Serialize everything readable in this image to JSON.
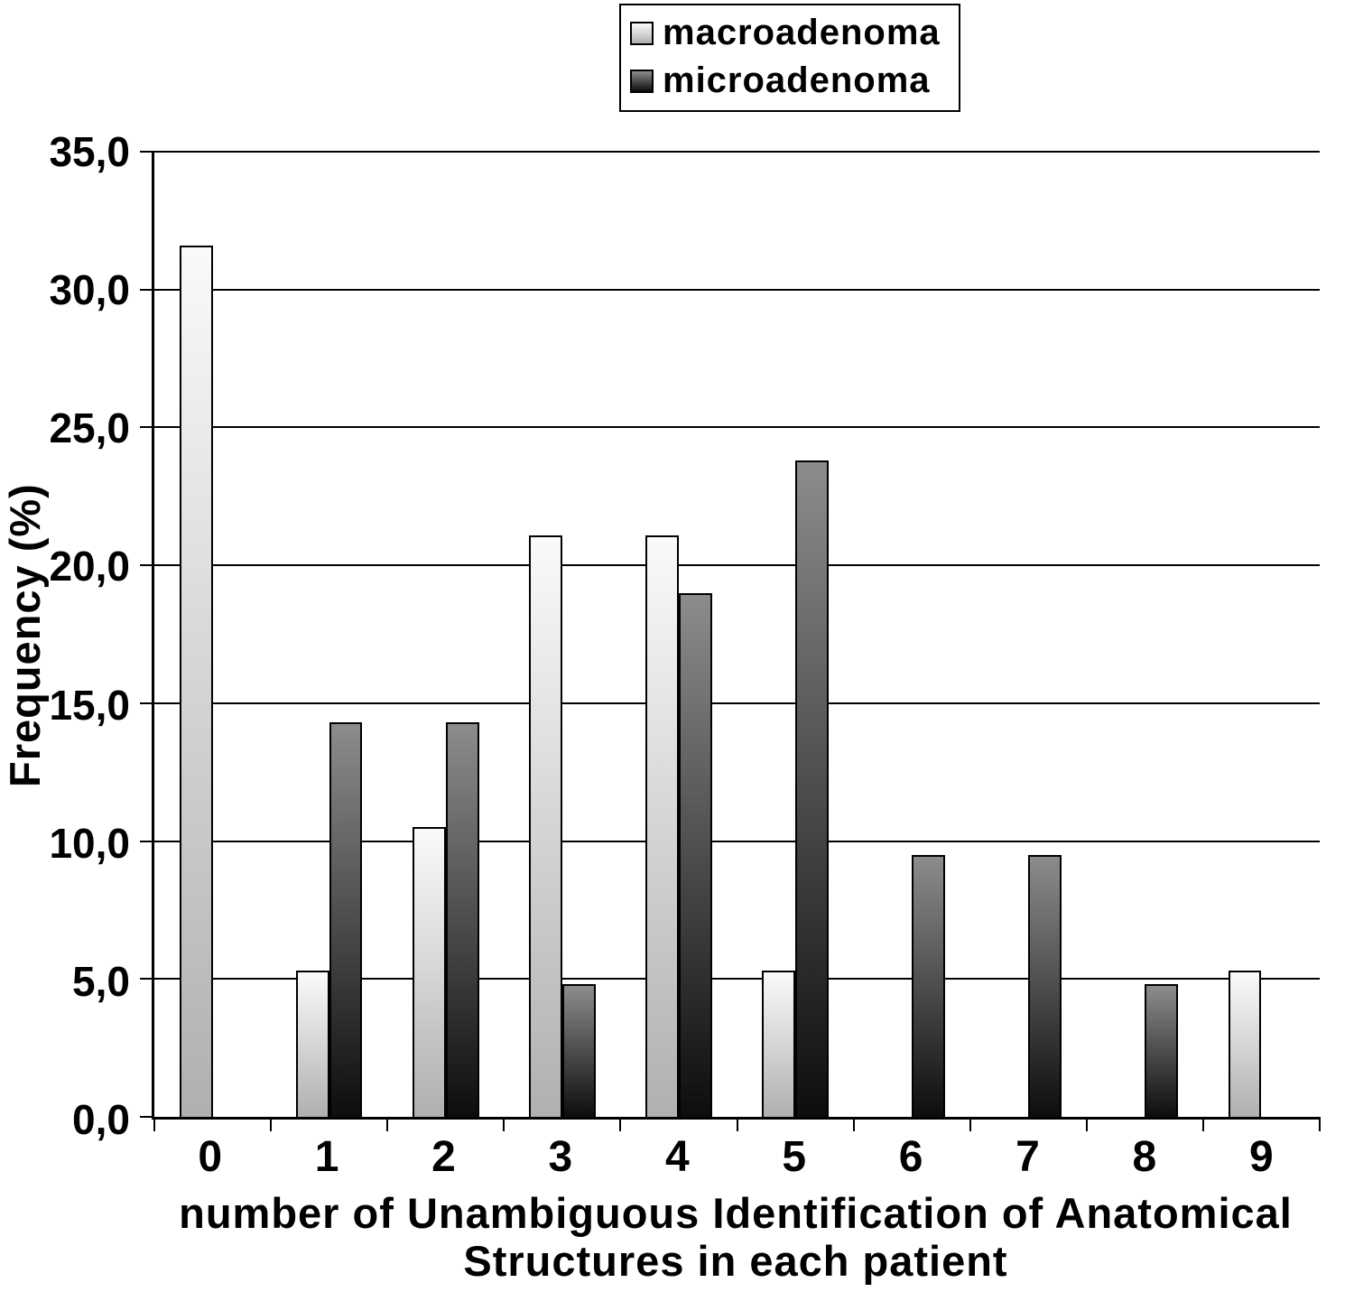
{
  "chart_data": {
    "type": "bar",
    "categories": [
      "0",
      "1",
      "2",
      "3",
      "4",
      "5",
      "6",
      "7",
      "8",
      "9"
    ],
    "series": [
      {
        "name": "macroadenoma",
        "values": [
          31.6,
          5.3,
          10.5,
          21.1,
          21.1,
          5.3,
          0,
          0,
          0,
          5.3
        ],
        "fill_top": "#fafafa",
        "fill_bottom": "#b0b0b0"
      },
      {
        "name": "microadenoma",
        "values": [
          0,
          14.3,
          14.3,
          4.8,
          19.0,
          23.8,
          9.5,
          9.5,
          4.8,
          0
        ],
        "fill_top": "#8c8c8c",
        "fill_bottom": "#0d0d0d"
      }
    ],
    "title": "",
    "xlabel": "number of Unambiguous Identification of Anatomical Structures in each patient",
    "xlabel_lines": [
      "number of Unambiguous Identification of Anatomical",
      "Structures in each patient"
    ],
    "ylabel": "Frequency (%)",
    "ylim": [
      0,
      35
    ],
    "ytick_step": 5,
    "ytick_labels": [
      "0,0",
      "5,0",
      "10,0",
      "15,0",
      "20,0",
      "25,0",
      "30,0",
      "35,0"
    ],
    "grid": true,
    "legend_position": "top-center",
    "axis_color": "#000000",
    "background": "#ffffff"
  }
}
